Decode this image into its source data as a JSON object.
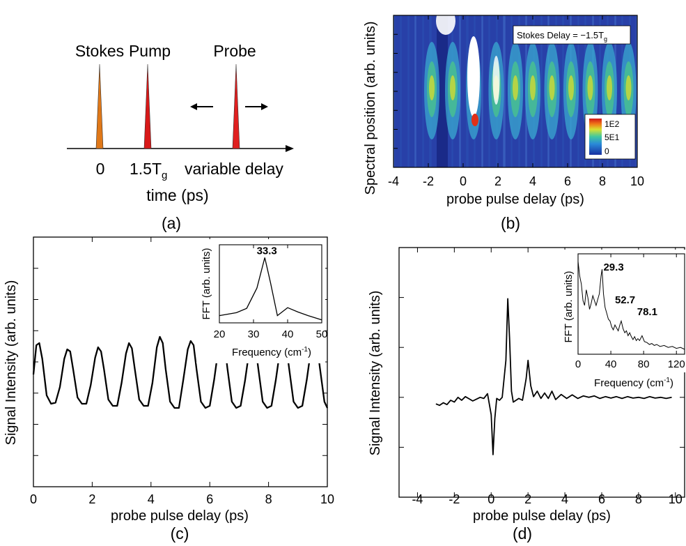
{
  "colors": {
    "stokes_pulse": "#e07818",
    "pump_pulse": "#d81818",
    "probe_pulse": "#e02020",
    "heatmap_background": "#2840a8",
    "trace": "#000000"
  },
  "panel_labels": {
    "a": "(a)",
    "b": "(b)",
    "c": "(c)",
    "d": "(d)"
  },
  "chart_data": [
    {
      "id": "a",
      "type": "diagram",
      "pulses": [
        {
          "label": "Stokes",
          "color": "#e07818"
        },
        {
          "label": "Pump",
          "color": "#d81818"
        },
        {
          "label": "Probe",
          "color": "#e02020"
        }
      ],
      "tick_labels": {
        "zero": "0",
        "pump_base": "1.5T",
        "pump_sub": "g",
        "probe": "variable delay"
      },
      "xlabel": "time (ps)"
    },
    {
      "id": "b",
      "type": "heatmap",
      "xlabel": "probe pulse delay (ps)",
      "ylabel": "Spectral position  (arb. units)",
      "xlim": [
        -4,
        10
      ],
      "xticks": [
        "-4",
        "-2",
        "0",
        "2",
        "4",
        "6",
        "8",
        "10"
      ],
      "annotation": {
        "base": "Stokes Delay = −1.5T",
        "sub": "g"
      },
      "colorbar": {
        "labels": [
          "1E2",
          "5E1",
          "0"
        ],
        "range": [
          0,
          100
        ]
      },
      "bright_bands_x": [
        -1.8,
        -0.6,
        0.6,
        1.9,
        3.0,
        4.0,
        5.1,
        6.2,
        7.3,
        8.4,
        9.5
      ]
    },
    {
      "id": "c",
      "type": "line",
      "xlabel": "probe pulse delay (ps)",
      "ylabel": "Signal Intensity (arb. units)",
      "xlim": [
        0,
        10
      ],
      "xticks": [
        "0",
        "2",
        "4",
        "6",
        "8",
        "10"
      ],
      "period_ps": 1.05,
      "x": [
        0,
        0.1,
        0.2,
        0.3,
        0.45,
        0.6,
        0.75,
        0.9,
        1.05,
        1.15,
        1.25,
        1.35,
        1.5,
        1.65,
        1.8,
        1.95,
        2.1,
        2.2,
        2.3,
        2.4,
        2.55,
        2.7,
        2.85,
        3.0,
        3.15,
        3.25,
        3.35,
        3.45,
        3.6,
        3.75,
        3.9,
        4.05,
        4.2,
        4.3,
        4.4,
        4.5,
        4.65,
        4.8,
        4.95,
        5.1,
        5.25,
        5.35,
        5.45,
        5.55,
        5.7,
        5.85,
        6.0,
        6.15,
        6.3,
        6.4,
        6.5,
        6.6,
        6.75,
        6.9,
        7.05,
        7.2,
        7.35,
        7.45,
        7.55,
        7.65,
        7.8,
        7.95,
        8.1,
        8.25,
        8.4,
        8.5,
        8.6,
        8.7,
        8.85,
        9.0,
        9.15,
        9.3,
        9.45,
        9.55,
        9.65,
        9.75,
        9.9,
        10.0
      ],
      "y": [
        0.5,
        0.78,
        0.8,
        0.65,
        0.3,
        0.22,
        0.23,
        0.38,
        0.65,
        0.74,
        0.72,
        0.55,
        0.28,
        0.22,
        0.22,
        0.4,
        0.66,
        0.76,
        0.72,
        0.55,
        0.26,
        0.2,
        0.2,
        0.42,
        0.7,
        0.8,
        0.75,
        0.55,
        0.26,
        0.2,
        0.2,
        0.42,
        0.76,
        0.86,
        0.8,
        0.55,
        0.24,
        0.18,
        0.18,
        0.45,
        0.74,
        0.82,
        0.78,
        0.55,
        0.24,
        0.18,
        0.2,
        0.45,
        0.76,
        0.84,
        0.8,
        0.56,
        0.24,
        0.18,
        0.2,
        0.44,
        0.74,
        0.82,
        0.78,
        0.56,
        0.24,
        0.18,
        0.2,
        0.45,
        0.75,
        0.83,
        0.78,
        0.56,
        0.24,
        0.18,
        0.2,
        0.45,
        0.75,
        0.83,
        0.78,
        0.56,
        0.24,
        0.18
      ],
      "inset": {
        "xlabel": "Frequency (cm",
        "xlabel_sup": "-1",
        "ylabel": "FFT (arb. units)",
        "xlim": [
          20,
          50
        ],
        "xticks": [
          "20",
          "30",
          "40",
          "50"
        ],
        "x": [
          20,
          25,
          28,
          31,
          33.3,
          35,
          37,
          40,
          43,
          46,
          50
        ],
        "y": [
          0.1,
          0.14,
          0.2,
          0.48,
          0.9,
          0.55,
          0.1,
          0.21,
          0.15,
          0.1,
          0.04
        ],
        "peak_label": "33.3"
      }
    },
    {
      "id": "d",
      "type": "line",
      "xlabel": "probe pulse delay (ps)",
      "ylabel": "Signal Intensity (arb. units)",
      "xlim": [
        -5,
        10.5
      ],
      "xticks": [
        "-4",
        "-2",
        "0",
        "2",
        "4",
        "6",
        "8",
        "10"
      ],
      "x": [
        -3.0,
        -2.8,
        -2.6,
        -2.4,
        -2.2,
        -2.0,
        -1.8,
        -1.6,
        -1.4,
        -1.2,
        -1.0,
        -0.8,
        -0.6,
        -0.4,
        -0.2,
        0.0,
        0.1,
        0.2,
        0.3,
        0.45,
        0.6,
        0.8,
        0.9,
        1.0,
        1.1,
        1.2,
        1.35,
        1.5,
        1.7,
        1.9,
        2.0,
        2.15,
        2.3,
        2.5,
        2.7,
        2.9,
        3.1,
        3.3,
        3.5,
        3.8,
        4.1,
        4.4,
        4.7,
        5.0,
        5.3,
        5.6,
        5.9,
        6.2,
        6.5,
        6.8,
        7.1,
        7.4,
        7.7,
        8.0,
        8.3,
        8.6,
        8.9,
        9.2,
        9.5,
        9.8
      ],
      "y": [
        0.4,
        0.36,
        0.43,
        0.38,
        0.5,
        0.45,
        0.58,
        0.5,
        0.6,
        0.54,
        0.48,
        0.53,
        0.58,
        0.55,
        0.68,
        0.1,
        -1.0,
        0.0,
        0.55,
        0.5,
        0.58,
        1.6,
        3.3,
        2.2,
        0.75,
        0.45,
        0.5,
        0.55,
        0.5,
        1.1,
        1.6,
        0.9,
        0.6,
        0.75,
        0.55,
        0.7,
        0.55,
        0.75,
        0.52,
        0.66,
        0.55,
        0.65,
        0.55,
        0.62,
        0.58,
        0.62,
        0.55,
        0.6,
        0.56,
        0.6,
        0.55,
        0.6,
        0.56,
        0.58,
        0.55,
        0.6,
        0.56,
        0.58,
        0.55,
        0.58
      ],
      "inset": {
        "xlabel": "Frequency (cm",
        "xlabel_sup": "-1",
        "ylabel": "FFT (arb. units)",
        "xlim": [
          0,
          130
        ],
        "xticks": [
          "0",
          "40",
          "80",
          "120"
        ],
        "x": [
          0,
          2,
          4,
          6,
          8,
          10,
          12,
          14,
          16,
          18,
          20,
          22,
          24,
          26,
          28,
          29.3,
          31,
          33,
          35,
          37,
          39,
          41,
          43,
          45,
          47,
          49,
          51,
          52.7,
          55,
          57,
          59,
          61,
          63,
          65,
          67,
          69,
          71,
          73,
          75,
          78.1,
          81,
          84,
          87,
          90,
          93,
          96,
          100,
          105,
          110,
          115,
          120,
          125,
          130
        ],
        "y": [
          0.95,
          0.8,
          0.72,
          0.55,
          0.5,
          0.66,
          0.58,
          0.46,
          0.52,
          0.6,
          0.55,
          0.5,
          0.56,
          0.62,
          0.8,
          0.87,
          0.62,
          0.48,
          0.42,
          0.36,
          0.34,
          0.28,
          0.25,
          0.3,
          0.27,
          0.24,
          0.3,
          0.34,
          0.26,
          0.22,
          0.24,
          0.19,
          0.22,
          0.18,
          0.15,
          0.18,
          0.14,
          0.16,
          0.14,
          0.19,
          0.13,
          0.12,
          0.1,
          0.11,
          0.09,
          0.1,
          0.08,
          0.09,
          0.07,
          0.08,
          0.06,
          0.07,
          0.05
        ],
        "peak_labels": [
          "29.3",
          "52.7",
          "78.1"
        ]
      }
    }
  ]
}
